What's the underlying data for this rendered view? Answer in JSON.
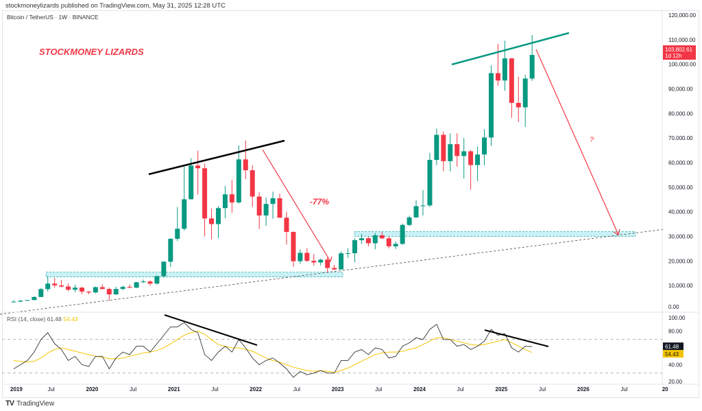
{
  "header": {
    "published": "stockmoneylizards published on TradingView.com, May 31, 2025 12:28 UTC",
    "symbol": "Bitcoin / TetherUS · 1W · BINANCE"
  },
  "annotations": {
    "brand": "STOCKMONEY LIZARDS",
    "drop": "-77%",
    "question": "?"
  },
  "footer": {
    "brand": "TradingView",
    "logo_icon": "tradingview-logo-icon"
  },
  "colors": {
    "up": "#089981",
    "down": "#f23645",
    "zone": "#b2ebf2",
    "annotation": "#f23645",
    "ma": "#f5c400"
  },
  "chart_data": [
    {
      "type": "candlestick",
      "title": "Bitcoin / TetherUS · 1W · BINANCE",
      "last_price": "103,802.61",
      "countdown": "1d 12h",
      "ylim": [
        0,
        120000
      ],
      "yticks": [
        "120,000.00",
        "110,000.00",
        "100,000.00",
        "90,000.00",
        "80,000.00",
        "70,000.00",
        "60,000.00",
        "50,000.00",
        "40,000.00",
        "30,000.00",
        "20,000.00",
        "10,000.00",
        "0.00"
      ],
      "yticks_values": [
        120000,
        110000,
        100000,
        90000,
        80000,
        70000,
        60000,
        50000,
        40000,
        30000,
        20000,
        10000,
        0
      ],
      "xticks": [
        "2019",
        "Jul",
        "2020",
        "Jul",
        "2021",
        "Jul",
        "2022",
        "Jul",
        "2023",
        "Jul",
        "2024",
        "Jul",
        "2025",
        "Jul",
        "2026",
        "Jul",
        "20"
      ],
      "start": "2019-01",
      "period": "month (approximated)",
      "close": [
        3450,
        3820,
        4100,
        5350,
        8550,
        10800,
        10080,
        9600,
        8300,
        9150,
        7550,
        7200,
        9350,
        8600,
        6400,
        8620,
        9450,
        9140,
        11350,
        11650,
        10780,
        13800,
        19700,
        29000,
        33100,
        45100,
        58800,
        57700,
        37300,
        35000,
        41500,
        47100,
        43800,
        61300,
        56900,
        46200,
        38500,
        43200,
        45500,
        37600,
        31800,
        19900,
        23300,
        20050,
        19400,
        20500,
        17150,
        16550,
        23100,
        23150,
        28450,
        29250,
        27200,
        30450,
        29200,
        25950,
        26950,
        34650,
        37700,
        42300,
        42600,
        61100,
        71300,
        60600,
        67500,
        62700,
        64600,
        59000,
        63300,
        70200,
        96400,
        93400,
        102400,
        84300,
        82500,
        94200,
        103802.61
      ],
      "high": [
        4100,
        4200,
        4150,
        5600,
        9000,
        13800,
        13200,
        12300,
        10900,
        10400,
        9500,
        7700,
        9600,
        10500,
        9200,
        9500,
        10000,
        10400,
        11500,
        12450,
        12100,
        14100,
        19900,
        29300,
        41900,
        58400,
        61800,
        64900,
        59600,
        41300,
        42300,
        50500,
        52900,
        67000,
        69000,
        59000,
        47900,
        45800,
        48200,
        47400,
        40000,
        32000,
        24700,
        25200,
        22800,
        21000,
        21500,
        18400,
        23900,
        25250,
        29200,
        31000,
        29800,
        31400,
        31800,
        30000,
        28000,
        35200,
        38400,
        44700,
        48900,
        64000,
        73800,
        72700,
        71900,
        72000,
        70000,
        65100,
        66500,
        73600,
        99600,
        108300,
        109600,
        102500,
        95000,
        95700,
        111900
      ],
      "low": [
        3350,
        3400,
        3700,
        4050,
        5350,
        7500,
        9100,
        9300,
        7700,
        7300,
        6500,
        6400,
        6850,
        8450,
        3800,
        6200,
        8100,
        8900,
        9000,
        11000,
        9900,
        10400,
        13200,
        17600,
        28100,
        32300,
        45000,
        47000,
        30000,
        28800,
        29300,
        37400,
        39600,
        43300,
        53300,
        42000,
        33000,
        34300,
        37200,
        37500,
        26700,
        17600,
        18800,
        19600,
        18100,
        18200,
        15500,
        16250,
        16500,
        21300,
        19500,
        26900,
        25900,
        24800,
        28900,
        25100,
        24900,
        26500,
        34100,
        37600,
        38500,
        41900,
        59000,
        56500,
        56500,
        58400,
        53500,
        49000,
        52500,
        58900,
        66800,
        91300,
        89200,
        78200,
        76500,
        74500,
        93300
      ],
      "zones": [
        [
          13500,
          15500
        ],
        [
          30000,
          32000
        ]
      ]
    },
    {
      "type": "line",
      "title": "RSI (14, close)",
      "value": "61.48",
      "ma_value": "54.43",
      "ylim": [
        20,
        100
      ],
      "yticks": [
        "100.00",
        "80.00",
        "40.00",
        "20.00"
      ],
      "yticks_values": [
        100,
        80,
        40,
        20
      ],
      "bands": [
        30,
        70
      ],
      "rsi": [
        35,
        40,
        45,
        55,
        70,
        78,
        65,
        58,
        45,
        50,
        40,
        38,
        50,
        50,
        35,
        48,
        55,
        52,
        62,
        62,
        55,
        65,
        75,
        85,
        85,
        90,
        82,
        78,
        52,
        45,
        55,
        62,
        55,
        70,
        60,
        48,
        40,
        45,
        48,
        42,
        35,
        25,
        32,
        28,
        30,
        33,
        30,
        30,
        45,
        45,
        55,
        58,
        52,
        60,
        58,
        48,
        50,
        62,
        66,
        72,
        70,
        82,
        88,
        70,
        70,
        62,
        64,
        58,
        62,
        68,
        82,
        75,
        77,
        60,
        55,
        62,
        61.48
      ],
      "ma": [
        45,
        44,
        43,
        44,
        48,
        54,
        58,
        60,
        58,
        56,
        54,
        52,
        50,
        49,
        47,
        47,
        48,
        50,
        52,
        54,
        55,
        57,
        60,
        65,
        70,
        75,
        78,
        80,
        76,
        70,
        64,
        62,
        60,
        60,
        58,
        56,
        52,
        48,
        45,
        43,
        40,
        37,
        35,
        33,
        32,
        33,
        32,
        31,
        33,
        36,
        40,
        44,
        48,
        52,
        54,
        55,
        55,
        56,
        58,
        60,
        64,
        68,
        72,
        72,
        70,
        68,
        66,
        64,
        63,
        64,
        66,
        68,
        70,
        66,
        62,
        58,
        54.43
      ]
    }
  ]
}
